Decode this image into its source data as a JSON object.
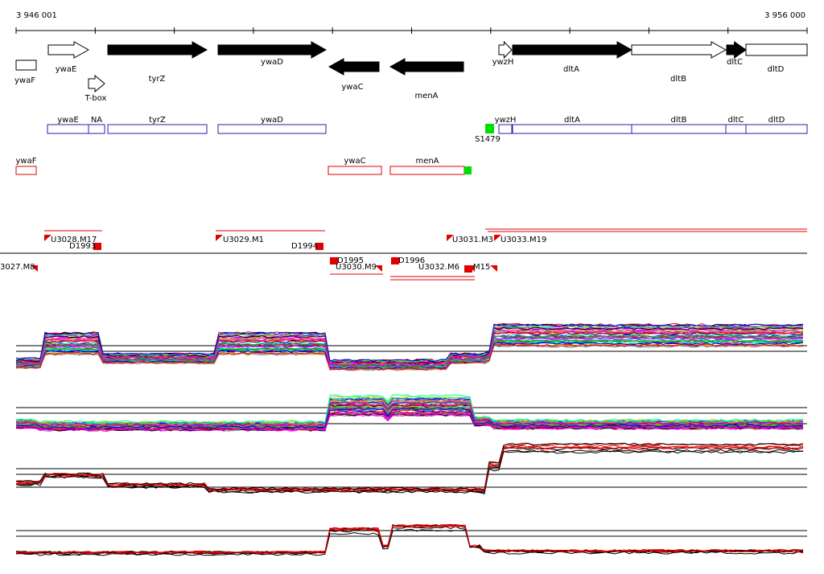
{
  "ruler": {
    "start": "3 946 001",
    "end": "3 956 000"
  },
  "genes": [
    "ywaF",
    "ywaE",
    "T-box",
    "tyrZ",
    "ywaD",
    "ywaC",
    "menA",
    "ywzH",
    "dltA",
    "dltB",
    "dltC",
    "dltD"
  ],
  "operons": [
    "ywaE",
    "NA",
    "tyrZ",
    "ywaD",
    "ywzH",
    "dltA",
    "dltB",
    "dltC",
    "dltD",
    "S1479"
  ],
  "antisense": [
    "ywaF",
    "ywaC",
    "menA"
  ],
  "segments": [
    "3027.M8",
    "U3028.M17",
    "D1993",
    "U3029.M1",
    "D1994",
    "D1995",
    "U3030.M9",
    "D1996",
    "U3032.M6",
    "U3031.M3",
    "U3033.M19",
    "M15"
  ]
}
